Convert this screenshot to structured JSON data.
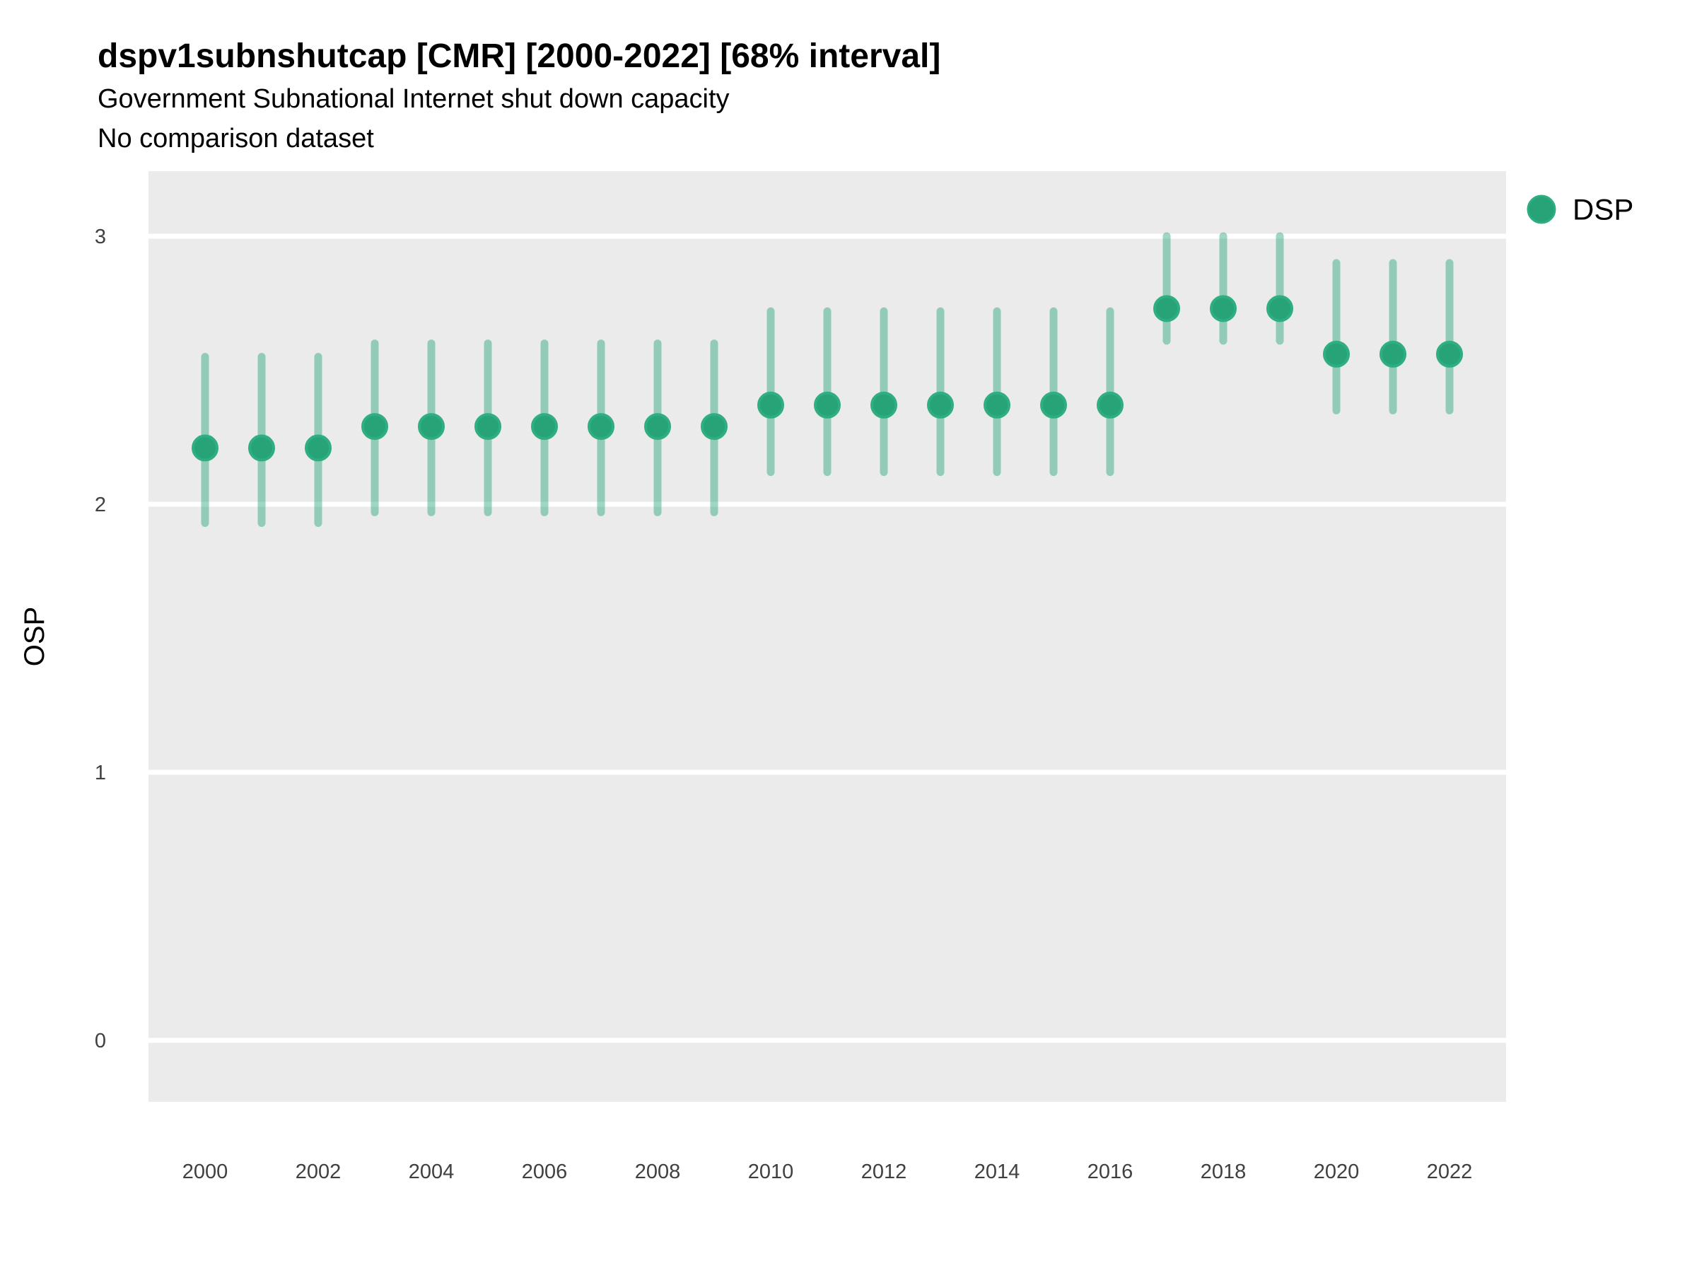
{
  "header": {
    "title": "dspv1subnshutcap [CMR] [2000-2022] [68% interval]",
    "subtitle": "Government Subnational Internet shut down capacity",
    "note": "No comparison dataset"
  },
  "legend": {
    "items": [
      {
        "label": "DSP",
        "marker": "circle-icon"
      }
    ],
    "position": "right-top"
  },
  "colors": {
    "point": "#26A377",
    "point_ring": "#2FAE82",
    "interval": "rgba(38,163,119,0.45)",
    "panel_background": "#EBEBEB",
    "gridline": "#FFFFFF",
    "tick_text": "#404040",
    "text": "#000000"
  },
  "chart_data": {
    "type": "scatter",
    "variant": "pointrange",
    "title": "dspv1subnshutcap [CMR] [2000-2022] [68% interval]",
    "subtitle": "Government Subnational Internet shut down capacity",
    "annotation": "No comparison dataset",
    "interval_level": "68%",
    "xlabel": "",
    "ylabel": "OSP",
    "x": [
      2000,
      2001,
      2002,
      2003,
      2004,
      2005,
      2006,
      2007,
      2008,
      2009,
      2010,
      2011,
      2012,
      2013,
      2014,
      2015,
      2016,
      2017,
      2018,
      2019,
      2020,
      2021,
      2022
    ],
    "series": [
      {
        "name": "DSP",
        "values": [
          2.21,
          2.21,
          2.21,
          2.29,
          2.29,
          2.29,
          2.29,
          2.29,
          2.29,
          2.29,
          2.37,
          2.37,
          2.37,
          2.37,
          2.37,
          2.37,
          2.37,
          2.73,
          2.73,
          2.73,
          2.56,
          2.56,
          2.56
        ],
        "low": [
          1.93,
          1.93,
          1.93,
          1.97,
          1.97,
          1.97,
          1.97,
          1.97,
          1.97,
          1.97,
          2.12,
          2.12,
          2.12,
          2.12,
          2.12,
          2.12,
          2.12,
          2.61,
          2.61,
          2.61,
          2.35,
          2.35,
          2.35
        ],
        "high": [
          2.55,
          2.55,
          2.55,
          2.6,
          2.6,
          2.6,
          2.6,
          2.6,
          2.6,
          2.6,
          2.72,
          2.72,
          2.72,
          2.72,
          2.72,
          2.72,
          2.72,
          3.0,
          3.0,
          3.0,
          2.9,
          2.9,
          2.9
        ]
      }
    ],
    "xticks": [
      2000,
      2002,
      2004,
      2006,
      2008,
      2010,
      2012,
      2014,
      2016,
      2018,
      2020,
      2022
    ],
    "yticks": [
      0,
      1,
      2,
      3
    ],
    "ylim": [
      -0.24,
      3.25
    ],
    "grid": "horizontal-major-only",
    "legend_position": "right-top"
  }
}
